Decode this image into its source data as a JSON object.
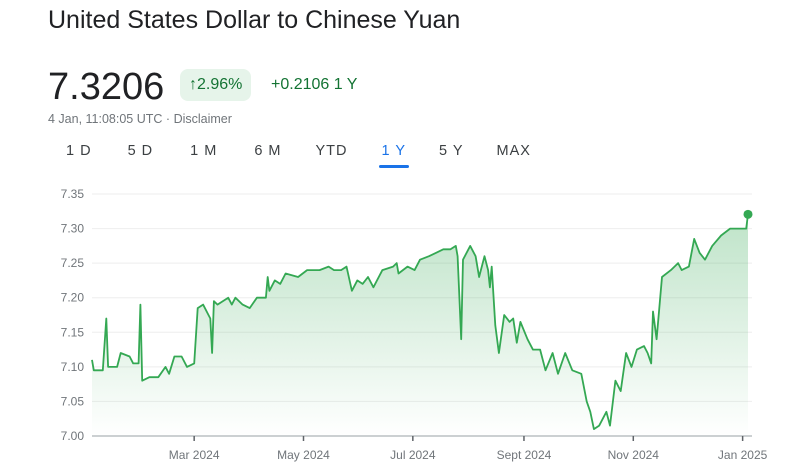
{
  "header": {
    "title": "United States Dollar to Chinese Yuan",
    "price": "7.3206",
    "badge": "2.96%",
    "badge_icon": "arrow-up-icon",
    "change": "+0.2106 1 Y",
    "timestamp": "4 Jan, 11:08:05 UTC",
    "separator": "·",
    "disclaimer": "Disclaimer"
  },
  "tabs": [
    {
      "label": "1 D"
    },
    {
      "label": "5 D"
    },
    {
      "label": "1 M"
    },
    {
      "label": "6 M"
    },
    {
      "label": "YTD"
    },
    {
      "label": "1 Y",
      "active": true
    },
    {
      "label": "5 Y"
    },
    {
      "label": "MAX"
    }
  ],
  "colors": {
    "line": "#34a853",
    "positive": "#137333",
    "badge_bg": "#e6f4ea",
    "active_tab": "#1a73e8"
  },
  "chart_data": {
    "type": "area",
    "title": "",
    "xlabel": "",
    "ylabel": "",
    "ylim": [
      7.0,
      7.35
    ],
    "yticks": [
      "7.00",
      "7.05",
      "7.10",
      "7.15",
      "7.20",
      "7.25",
      "7.30",
      "7.35"
    ],
    "xticks": [
      {
        "date": "2024-03-01",
        "label": "Mar 2024"
      },
      {
        "date": "2024-05-01",
        "label": "May 2024"
      },
      {
        "date": "2024-07-01",
        "label": "Jul 2024"
      },
      {
        "date": "2024-09-01",
        "label": "Sept 2024"
      },
      {
        "date": "2024-11-01",
        "label": "Nov 2024"
      },
      {
        "date": "2025-01-01",
        "label": "Jan 2025"
      }
    ],
    "grid": true,
    "last_point_marker": true,
    "points": [
      [
        "2024-01-04",
        7.11
      ],
      [
        "2024-01-05",
        7.095
      ],
      [
        "2024-01-10",
        7.095
      ],
      [
        "2024-01-12",
        7.17
      ],
      [
        "2024-01-13",
        7.1
      ],
      [
        "2024-01-18",
        7.1
      ],
      [
        "2024-01-20",
        7.12
      ],
      [
        "2024-01-25",
        7.115
      ],
      [
        "2024-01-27",
        7.105
      ],
      [
        "2024-01-30",
        7.105
      ],
      [
        "2024-01-31",
        7.19
      ],
      [
        "2024-02-01",
        7.08
      ],
      [
        "2024-02-05",
        7.085
      ],
      [
        "2024-02-10",
        7.085
      ],
      [
        "2024-02-14",
        7.1
      ],
      [
        "2024-02-16",
        7.09
      ],
      [
        "2024-02-19",
        7.115
      ],
      [
        "2024-02-23",
        7.115
      ],
      [
        "2024-02-26",
        7.1
      ],
      [
        "2024-03-01",
        7.105
      ],
      [
        "2024-03-03",
        7.185
      ],
      [
        "2024-03-06",
        7.19
      ],
      [
        "2024-03-10",
        7.17
      ],
      [
        "2024-03-11",
        7.12
      ],
      [
        "2024-03-12",
        7.195
      ],
      [
        "2024-03-14",
        7.19
      ],
      [
        "2024-03-20",
        7.2
      ],
      [
        "2024-03-22",
        7.19
      ],
      [
        "2024-03-24",
        7.2
      ],
      [
        "2024-03-28",
        7.19
      ],
      [
        "2024-04-01",
        7.185
      ],
      [
        "2024-04-05",
        7.2
      ],
      [
        "2024-04-10",
        7.2
      ],
      [
        "2024-04-11",
        7.23
      ],
      [
        "2024-04-12",
        7.21
      ],
      [
        "2024-04-15",
        7.225
      ],
      [
        "2024-04-18",
        7.22
      ],
      [
        "2024-04-21",
        7.235
      ],
      [
        "2024-04-28",
        7.23
      ],
      [
        "2024-05-03",
        7.24
      ],
      [
        "2024-05-10",
        7.24
      ],
      [
        "2024-05-15",
        7.245
      ],
      [
        "2024-05-18",
        7.24
      ],
      [
        "2024-05-22",
        7.24
      ],
      [
        "2024-05-25",
        7.245
      ],
      [
        "2024-05-28",
        7.21
      ],
      [
        "2024-05-31",
        7.225
      ],
      [
        "2024-06-03",
        7.22
      ],
      [
        "2024-06-06",
        7.23
      ],
      [
        "2024-06-09",
        7.215
      ],
      [
        "2024-06-14",
        7.24
      ],
      [
        "2024-06-20",
        7.245
      ],
      [
        "2024-06-22",
        7.25
      ],
      [
        "2024-06-23",
        7.235
      ],
      [
        "2024-06-28",
        7.245
      ],
      [
        "2024-07-02",
        7.24
      ],
      [
        "2024-07-05",
        7.255
      ],
      [
        "2024-07-10",
        7.26
      ],
      [
        "2024-07-14",
        7.265
      ],
      [
        "2024-07-18",
        7.27
      ],
      [
        "2024-07-22",
        7.27
      ],
      [
        "2024-07-25",
        7.275
      ],
      [
        "2024-07-26",
        7.26
      ],
      [
        "2024-07-28",
        7.14
      ],
      [
        "2024-07-29",
        7.255
      ],
      [
        "2024-08-02",
        7.275
      ],
      [
        "2024-08-05",
        7.26
      ],
      [
        "2024-08-07",
        7.23
      ],
      [
        "2024-08-10",
        7.26
      ],
      [
        "2024-08-12",
        7.24
      ],
      [
        "2024-08-13",
        7.215
      ],
      [
        "2024-08-14",
        7.245
      ],
      [
        "2024-08-16",
        7.16
      ],
      [
        "2024-08-18",
        7.12
      ],
      [
        "2024-08-21",
        7.175
      ],
      [
        "2024-08-24",
        7.165
      ],
      [
        "2024-08-26",
        7.17
      ],
      [
        "2024-08-28",
        7.135
      ],
      [
        "2024-08-30",
        7.165
      ],
      [
        "2024-09-03",
        7.14
      ],
      [
        "2024-09-06",
        7.125
      ],
      [
        "2024-09-10",
        7.125
      ],
      [
        "2024-09-13",
        7.095
      ],
      [
        "2024-09-17",
        7.12
      ],
      [
        "2024-09-20",
        7.09
      ],
      [
        "2024-09-24",
        7.12
      ],
      [
        "2024-09-28",
        7.095
      ],
      [
        "2024-10-03",
        7.09
      ],
      [
        "2024-10-06",
        7.05
      ],
      [
        "2024-10-08",
        7.035
      ],
      [
        "2024-10-10",
        7.01
      ],
      [
        "2024-10-13",
        7.015
      ],
      [
        "2024-10-17",
        7.035
      ],
      [
        "2024-10-19",
        7.015
      ],
      [
        "2024-10-22",
        7.08
      ],
      [
        "2024-10-25",
        7.065
      ],
      [
        "2024-10-28",
        7.12
      ],
      [
        "2024-10-31",
        7.1
      ],
      [
        "2024-11-03",
        7.125
      ],
      [
        "2024-11-07",
        7.13
      ],
      [
        "2024-11-09",
        7.12
      ],
      [
        "2024-11-11",
        7.105
      ],
      [
        "2024-11-12",
        7.18
      ],
      [
        "2024-11-14",
        7.14
      ],
      [
        "2024-11-17",
        7.23
      ],
      [
        "2024-11-22",
        7.24
      ],
      [
        "2024-11-26",
        7.25
      ],
      [
        "2024-11-28",
        7.24
      ],
      [
        "2024-12-02",
        7.245
      ],
      [
        "2024-12-05",
        7.285
      ],
      [
        "2024-12-08",
        7.265
      ],
      [
        "2024-12-11",
        7.255
      ],
      [
        "2024-12-15",
        7.275
      ],
      [
        "2024-12-20",
        7.29
      ],
      [
        "2024-12-25",
        7.3
      ],
      [
        "2025-01-01",
        7.3
      ],
      [
        "2025-01-03",
        7.3
      ],
      [
        "2025-01-04",
        7.3206
      ]
    ]
  }
}
